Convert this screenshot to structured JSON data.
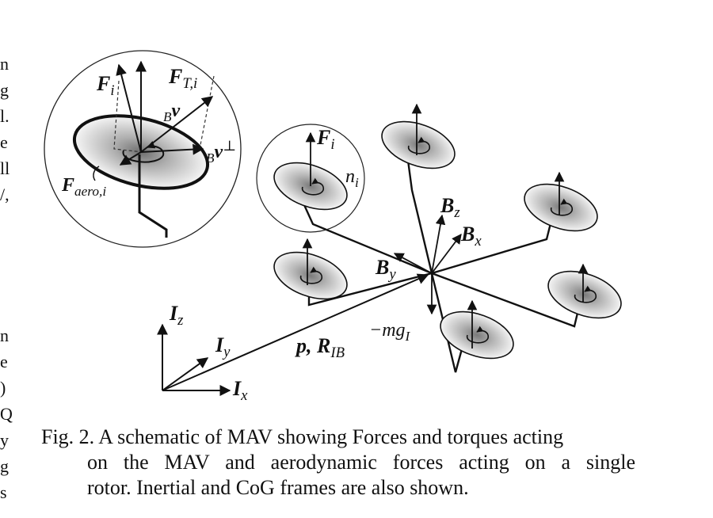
{
  "figure": {
    "inset_labels": {
      "f_i": "F",
      "f_i_sub": "i",
      "f_t": "F",
      "f_t_sub": "T,i",
      "bv_pre": "B",
      "bv": "v",
      "bv_perp_pre": "B",
      "bv_perp": "v",
      "perp": "⊥",
      "f_aero": "F",
      "f_aero_sub": "aero,i"
    },
    "labels": {
      "f_i2": "F",
      "f_i2_sub": "i",
      "n_i": "n",
      "n_i_sub": "i",
      "bz": "B",
      "bz_sub": "z",
      "bx": "B",
      "bx_sub": "x",
      "by": "B",
      "by_sub": "y",
      "iz": "I",
      "iz_sub": "z",
      "iy": "I",
      "iy_sub": "y",
      "ix": "I",
      "ix_sub": "x",
      "p_r": "p, R",
      "p_r_sub": "IB",
      "mg": "−mg",
      "mg_sub": "I"
    }
  },
  "margin_fragments": [
    "n",
    "g",
    "l.",
    "e",
    "ll",
    "/,",
    "n",
    "e",
    ")",
    "Q",
    "y",
    "g",
    "s"
  ],
  "caption": {
    "line1": "Fig. 2. A schematic of MAV showing Forces and torques acting",
    "line2": "on the MAV and aerodynamic forces acting on a single",
    "line3": "rotor. Inertial and CoG frames are also shown."
  }
}
